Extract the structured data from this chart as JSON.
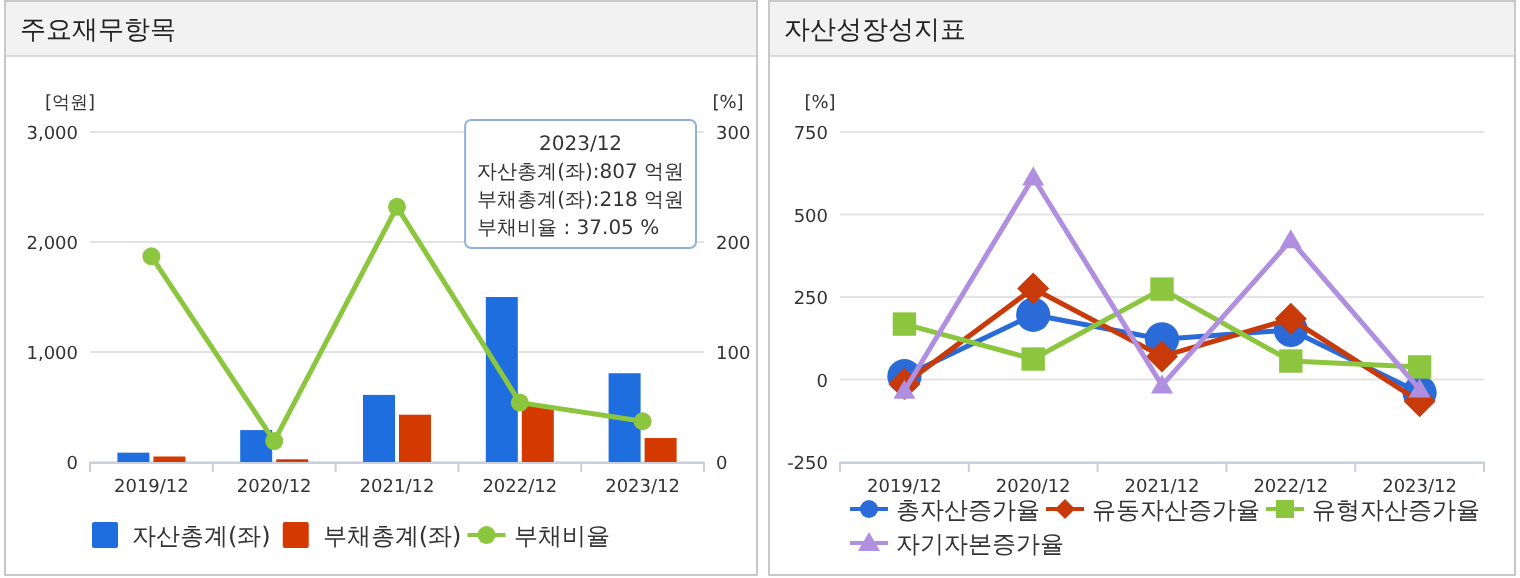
{
  "chart_data": [
    {
      "type": "bar",
      "title": "주요재무항목",
      "ylabel": "[억원]",
      "y2label": "[%]",
      "categories": [
        "2019/12",
        "2020/12",
        "2021/12",
        "2022/12",
        "2023/12"
      ],
      "series": [
        {
          "name": "자산총계(좌)",
          "color": "#1f6ee0",
          "values": [
            85,
            290,
            610,
            1500,
            807
          ]
        },
        {
          "name": "부채총계(좌)",
          "color": "#d43a00",
          "values": [
            50,
            25,
            430,
            510,
            218
          ]
        },
        {
          "name": "부채비율",
          "type": "line",
          "axis": "y2",
          "marker": "circle",
          "color": "#8cc63f",
          "values": [
            187,
            19,
            232,
            54,
            37.05
          ]
        }
      ],
      "ylim": [
        0,
        3000
      ],
      "yticks": [
        0,
        {
          "value": 1000,
          "label": "1,000"
        },
        {
          "value": 2000,
          "label": "2,000"
        },
        {
          "value": 3000,
          "label": "3,000"
        }
      ],
      "y2lim": [
        0,
        300
      ],
      "y2ticks": [
        0,
        100,
        200,
        300
      ],
      "grid": "y",
      "legend": "bottom",
      "annotations": [
        "2023/12",
        "자산총계(좌):807 억원",
        "부채총계(좌):218 억원",
        "부채비율   : 37.05 %"
      ]
    },
    {
      "type": "line",
      "title": "자산성장성지표",
      "ylabel": "[%]",
      "categories": [
        "2019/12",
        "2020/12",
        "2021/12",
        "2022/12",
        "2023/12"
      ],
      "series": [
        {
          "name": "총자산증가율",
          "color": "#2a6bd8",
          "marker": "circle",
          "values": [
            10,
            196,
            122,
            150,
            -40
          ]
        },
        {
          "name": "유동자산증가율",
          "color": "#c83a0a",
          "marker": "diamond",
          "values": [
            -14,
            276,
            70,
            184,
            -66
          ]
        },
        {
          "name": "유형자산증가율",
          "color": "#8cc63f",
          "marker": "square",
          "values": [
            168,
            62,
            274,
            56,
            38
          ]
        },
        {
          "name": "자기자본증가율",
          "color": "#b08fe0",
          "marker": "triangle",
          "values": [
            -34,
            612,
            -18,
            422,
            -30
          ]
        }
      ],
      "ylim": [
        -250,
        750
      ],
      "yticks": [
        -250,
        0,
        250,
        500,
        750
      ],
      "grid": "y",
      "legend": "bottom"
    }
  ]
}
